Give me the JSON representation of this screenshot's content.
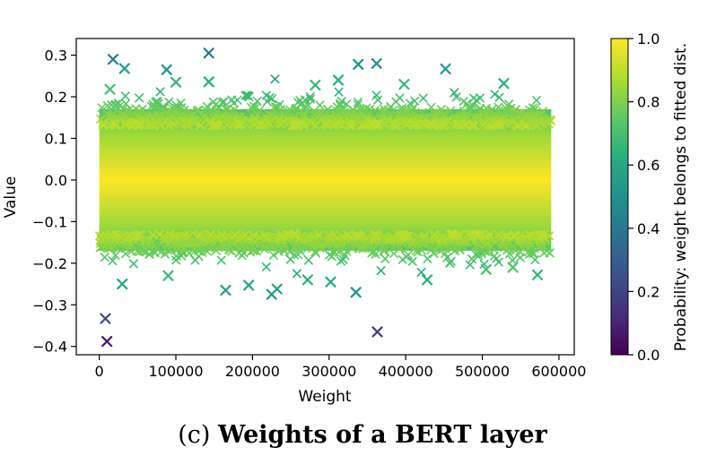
{
  "chart_data": {
    "type": "scatter",
    "marker": "x",
    "xlabel": "Weight",
    "ylabel": "Value",
    "xlim": [
      -30000,
      620000
    ],
    "ylim": [
      -0.42,
      0.34
    ],
    "xticks": [
      0,
      100000,
      200000,
      300000,
      400000,
      500000,
      600000
    ],
    "xtick_labels": [
      "0",
      "100000",
      "200000",
      "300000",
      "400000",
      "500000",
      "600000"
    ],
    "yticks": [
      -0.4,
      -0.3,
      -0.2,
      -0.1,
      0.0,
      0.1,
      0.2,
      0.3
    ],
    "ytick_labels": [
      "−0.4",
      "−0.3",
      "−0.2",
      "−0.1",
      "0.0",
      "0.1",
      "0.2",
      "0.3"
    ],
    "colorbar": {
      "label": "Probability: weight belongs to fitted dist.",
      "colormap": "viridis",
      "range": [
        0.0,
        1.0
      ],
      "ticks": [
        0.0,
        0.2,
        0.4,
        0.6,
        0.8,
        1.0
      ],
      "tick_labels": [
        "0.0",
        "0.2",
        "0.4",
        "0.6",
        "0.8",
        "1.0"
      ]
    },
    "bulk_distribution": {
      "x_range": [
        0,
        590000
      ],
      "dense_value_range": [
        -0.17,
        0.17
      ],
      "color_note": "probability near 1.0 at value 0, decreasing toward the tails"
    },
    "outliers": [
      {
        "x": 8000,
        "y": -0.333,
        "p": 0.22
      },
      {
        "x": 10000,
        "y": -0.388,
        "p": 0.06
      },
      {
        "x": 18000,
        "y": 0.29,
        "p": 0.42
      },
      {
        "x": 33000,
        "y": 0.268,
        "p": 0.55
      },
      {
        "x": 88000,
        "y": 0.265,
        "p": 0.52
      },
      {
        "x": 143000,
        "y": 0.305,
        "p": 0.4
      },
      {
        "x": 143000,
        "y": 0.236,
        "p": 0.62
      },
      {
        "x": 338000,
        "y": 0.278,
        "p": 0.5
      },
      {
        "x": 362000,
        "y": 0.28,
        "p": 0.48
      },
      {
        "x": 363000,
        "y": -0.365,
        "p": 0.18
      },
      {
        "x": 452000,
        "y": 0.267,
        "p": 0.52
      },
      {
        "x": 528000,
        "y": 0.232,
        "p": 0.62
      },
      {
        "x": 165000,
        "y": -0.265,
        "p": 0.55
      },
      {
        "x": 195000,
        "y": -0.253,
        "p": 0.58
      },
      {
        "x": 225000,
        "y": -0.275,
        "p": 0.52
      },
      {
        "x": 232000,
        "y": -0.262,
        "p": 0.55
      },
      {
        "x": 272000,
        "y": -0.24,
        "p": 0.62
      },
      {
        "x": 302000,
        "y": -0.245,
        "p": 0.6
      },
      {
        "x": 335000,
        "y": -0.27,
        "p": 0.52
      },
      {
        "x": 428000,
        "y": -0.24,
        "p": 0.62
      },
      {
        "x": 572000,
        "y": -0.228,
        "p": 0.66
      },
      {
        "x": 14000,
        "y": 0.218,
        "p": 0.7
      },
      {
        "x": 100000,
        "y": 0.235,
        "p": 0.64
      },
      {
        "x": 282000,
        "y": 0.228,
        "p": 0.66
      },
      {
        "x": 312000,
        "y": 0.24,
        "p": 0.62
      },
      {
        "x": 398000,
        "y": 0.23,
        "p": 0.66
      },
      {
        "x": 30000,
        "y": -0.25,
        "p": 0.6
      },
      {
        "x": 90000,
        "y": -0.23,
        "p": 0.66
      },
      {
        "x": 505000,
        "y": -0.215,
        "p": 0.7
      },
      {
        "x": 540000,
        "y": -0.21,
        "p": 0.72
      }
    ]
  },
  "caption": {
    "prefix": "(c) ",
    "title": "Weights of a BERT layer"
  }
}
